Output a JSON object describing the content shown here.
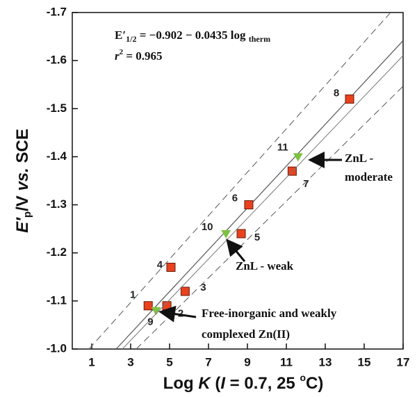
{
  "chart_data": {
    "type": "scatter",
    "equation": {
      "lhs": "E′",
      "lhs_sub": "1/2",
      "rhs": " = −0.902 − 0.0435 log ",
      "rhs_sub": "therm"
    },
    "fit": {
      "intercept": -0.902,
      "slope": -0.0435
    },
    "r2": {
      "symbol": "r",
      "sup": "2",
      "rest": " = 0.965"
    },
    "x_label": {
      "pre": "Log ",
      "k": "K",
      "mid": " (",
      "i": "I",
      "rest": " = 0.7, 25 ",
      "sup": "o",
      "end": "C)"
    },
    "y_label": {
      "e": "E′",
      "sub": "p",
      "mid": "/V ",
      "vs": "vs.",
      "rest": " SCE"
    },
    "annotations": [
      [
        "ZnL -",
        "moderate"
      ],
      [
        "ZnL - weak"
      ],
      [
        "Free-inorganic and weakly",
        "complexed  Zn(II)"
      ]
    ],
    "xlim": [
      0,
      17
    ],
    "xticks": [
      1,
      3,
      5,
      7,
      9,
      11,
      13,
      15,
      17
    ],
    "ylim": [
      -1.0,
      -1.7
    ],
    "yticks": [
      {
        "value": -1.0,
        "label": "-1.0"
      },
      -1.1,
      -1.2,
      -1.3,
      -1.4,
      -1.5,
      -1.6,
      -1.7
    ],
    "series": [
      {
        "marker": "square",
        "color": "#e8421e",
        "labels": [
          "1",
          "2",
          "3",
          "4",
          "5",
          "6",
          "7",
          "8"
        ],
        "x": [
          3.9,
          4.86,
          5.8,
          5.07,
          8.68,
          9.07,
          11.3,
          14.25
        ],
        "values": [
          -1.09,
          -1.09,
          -1.12,
          -1.17,
          -1.24,
          -1.3,
          -1.37,
          -1.52
        ]
      },
      {
        "marker": "triangle",
        "color": "#7dc242",
        "labels": [
          "9",
          "10",
          "11"
        ],
        "x": [
          4.3,
          7.9,
          11.6
        ],
        "values": [
          -1.08,
          -1.24,
          -1.4
        ]
      }
    ]
  }
}
